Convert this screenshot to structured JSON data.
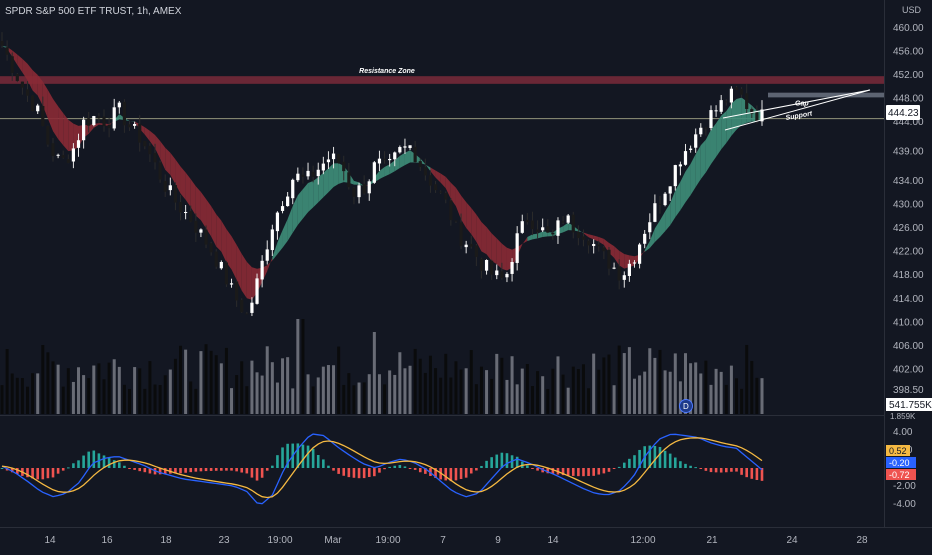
{
  "header": {
    "symbol_title": "SPDR S&P 500 ETF TRUST, 1h, AMEX",
    "currency": "USD"
  },
  "colors": {
    "background": "#131722",
    "bull": "#ffffff",
    "bear": "#1a1a1a",
    "bull_ribbon": "#3f8f7a",
    "bear_ribbon": "#8b2a35",
    "resistance_zone": "#7a2a3a",
    "gap_box": "#6b7280",
    "price_line": "#c8c8a0",
    "macd_line": "#2962ff",
    "signal_line": "#f5b942",
    "hist_pos": "#26a69a",
    "hist_neg": "#ef5350"
  },
  "chart_data": [
    {
      "type": "candlestick",
      "title": "SPDR S&P 500 ETF TRUST, 1h, AMEX",
      "ylabel": "USD",
      "ylim": [
        398,
        461
      ],
      "y_ticks": [
        "460.00",
        "456.00",
        "452.00",
        "448.00",
        "444.00",
        "439.00",
        "434.00",
        "430.00",
        "426.00",
        "422.00",
        "418.00",
        "414.00",
        "410.00",
        "406.00",
        "402.00",
        "398.50"
      ],
      "x_ticks": [
        "14",
        "16",
        "18",
        "23",
        "19:00",
        "Mar",
        "19:00",
        "7",
        "9",
        "14",
        "12:00",
        "21",
        "24",
        "28"
      ],
      "close_path": [
        457,
        453,
        449,
        446,
        440,
        437,
        439,
        444,
        445,
        444,
        446,
        443,
        441,
        437,
        433,
        430,
        428,
        425,
        422,
        418,
        414,
        411,
        418,
        426,
        431,
        435,
        434,
        436,
        438,
        437,
        432,
        433,
        437,
        436,
        439,
        440,
        436,
        433,
        430,
        425,
        423,
        420,
        418,
        417,
        424,
        428,
        426,
        424,
        428,
        426,
        425,
        422,
        420,
        418,
        421,
        426,
        430,
        434,
        438,
        441,
        444,
        446,
        448,
        449,
        446,
        445
      ],
      "last_price": "444.23",
      "volume_label": "541.755K",
      "volume_partial_label": "1.859K",
      "annotations": {
        "resistance": "Resistance Zone",
        "resistance_range": [
          450.5,
          451.8
        ],
        "gap": "Gap",
        "gap_range": [
          448.2,
          449.0
        ],
        "support": "Support"
      }
    },
    {
      "type": "macd",
      "ylim": [
        -5,
        5
      ],
      "y_ticks": [
        "4.00",
        "2.00",
        "-2.00",
        "-4.00"
      ],
      "values": {
        "histogram": "0.52",
        "macd": "-0.20",
        "signal": "-0.72"
      },
      "macd_path": [
        0.2,
        -0.5,
        -1.5,
        -2.6,
        -3.2,
        -2.8,
        -1.6,
        0.5,
        1.1,
        1.3,
        0.8,
        0.3,
        -0.4,
        -0.8,
        -1.2,
        -1.4,
        -1.6,
        -1.8,
        -2.0,
        -2.6,
        -4.2,
        -3.0,
        0.2,
        2.2,
        3.8,
        3.6,
        2.4,
        1.4,
        0.5,
        0.0,
        0.6,
        1.0,
        0.6,
        -0.2,
        -1.4,
        -2.6,
        -3.2,
        -2.8,
        -1.2,
        0.4,
        1.0,
        0.5,
        -0.2,
        -0.8,
        -1.5,
        -2.2,
        -2.8,
        -3.0,
        -2.5,
        -1.0,
        1.5,
        3.2,
        3.8,
        3.6,
        3.4,
        2.8,
        2.4,
        2.2,
        1.0,
        -0.2
      ]
    }
  ]
}
